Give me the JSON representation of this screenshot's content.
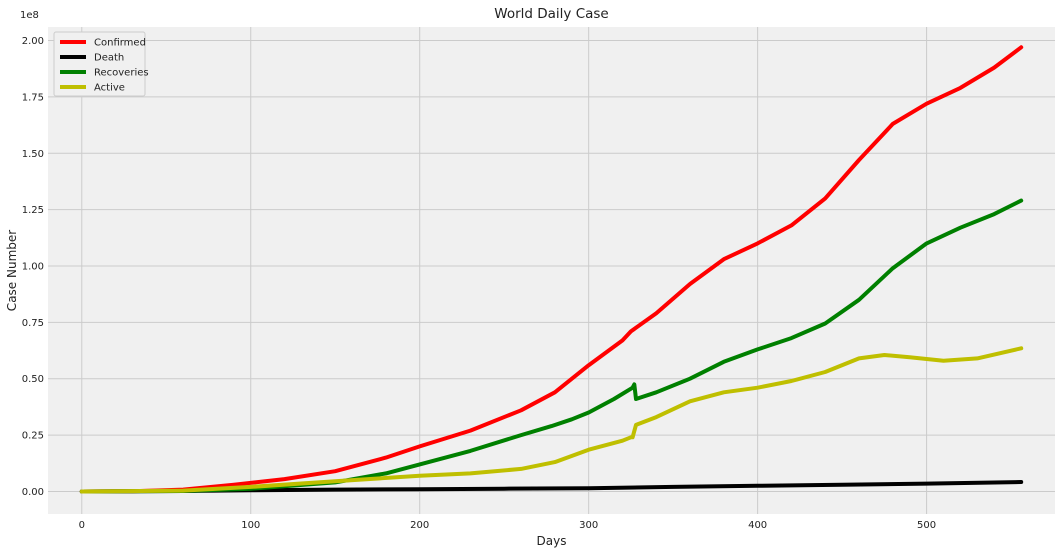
{
  "chart_data": {
    "type": "line",
    "title": "World Daily Case",
    "xlabel": "Days",
    "ylabel": "Case Number",
    "y_scale_label": "1e8",
    "xlim": [
      -20,
      576
    ],
    "ylim": [
      -0.1,
      2.06
    ],
    "x_ticks": [
      0,
      100,
      200,
      300,
      400,
      500
    ],
    "x_tick_labels": [
      "0",
      "100",
      "200",
      "300",
      "400",
      "500"
    ],
    "y_ticks": [
      0,
      0.25,
      0.5,
      0.75,
      1.0,
      1.25,
      1.5,
      1.75,
      2.0
    ],
    "y_tick_labels": [
      "0.00",
      "0.25",
      "0.50",
      "0.75",
      "1.00",
      "1.25",
      "1.50",
      "1.75",
      "2.00"
    ],
    "grid": true,
    "legend_position": "top-left",
    "series": [
      {
        "name": "Confirmed",
        "color": "#ff0000",
        "points": [
          [
            0,
            0
          ],
          [
            30,
            0.001
          ],
          [
            60,
            0.008
          ],
          [
            90,
            0.03
          ],
          [
            120,
            0.055
          ],
          [
            150,
            0.09
          ],
          [
            180,
            0.15
          ],
          [
            200,
            0.2
          ],
          [
            230,
            0.27
          ],
          [
            260,
            0.36
          ],
          [
            280,
            0.44
          ],
          [
            300,
            0.56
          ],
          [
            320,
            0.67
          ],
          [
            325,
            0.71
          ],
          [
            340,
            0.79
          ],
          [
            360,
            0.92
          ],
          [
            380,
            1.03
          ],
          [
            400,
            1.1
          ],
          [
            420,
            1.18
          ],
          [
            440,
            1.3
          ],
          [
            460,
            1.47
          ],
          [
            480,
            1.63
          ],
          [
            500,
            1.72
          ],
          [
            520,
            1.79
          ],
          [
            540,
            1.88
          ],
          [
            556,
            1.97
          ]
        ]
      },
      {
        "name": "Death",
        "color": "#000000",
        "points": [
          [
            0,
            0
          ],
          [
            60,
            0.002
          ],
          [
            100,
            0.005
          ],
          [
            150,
            0.008
          ],
          [
            200,
            0.01
          ],
          [
            250,
            0.012
          ],
          [
            300,
            0.014
          ],
          [
            350,
            0.02
          ],
          [
            400,
            0.025
          ],
          [
            450,
            0.03
          ],
          [
            500,
            0.035
          ],
          [
            556,
            0.042
          ]
        ]
      },
      {
        "name": "Recoveries",
        "color": "#008000",
        "points": [
          [
            0,
            0
          ],
          [
            60,
            0.002
          ],
          [
            100,
            0.012
          ],
          [
            150,
            0.04
          ],
          [
            180,
            0.08
          ],
          [
            200,
            0.12
          ],
          [
            230,
            0.18
          ],
          [
            260,
            0.25
          ],
          [
            278,
            0.29
          ],
          [
            290,
            0.32
          ],
          [
            300,
            0.35
          ],
          [
            315,
            0.41
          ],
          [
            326,
            0.46
          ],
          [
            327,
            0.475
          ],
          [
            328,
            0.41
          ],
          [
            340,
            0.44
          ],
          [
            360,
            0.5
          ],
          [
            380,
            0.575
          ],
          [
            400,
            0.63
          ],
          [
            420,
            0.68
          ],
          [
            440,
            0.745
          ],
          [
            460,
            0.85
          ],
          [
            480,
            0.99
          ],
          [
            500,
            1.1
          ],
          [
            520,
            1.17
          ],
          [
            540,
            1.23
          ],
          [
            556,
            1.29
          ]
        ]
      },
      {
        "name": "Active",
        "color": "#bfbf00",
        "points": [
          [
            0,
            0
          ],
          [
            60,
            0.004
          ],
          [
            100,
            0.02
          ],
          [
            150,
            0.045
          ],
          [
            200,
            0.07
          ],
          [
            230,
            0.08
          ],
          [
            260,
            0.1
          ],
          [
            280,
            0.13
          ],
          [
            300,
            0.185
          ],
          [
            320,
            0.225
          ],
          [
            325,
            0.24
          ],
          [
            326,
            0.24
          ],
          [
            328,
            0.295
          ],
          [
            340,
            0.33
          ],
          [
            360,
            0.4
          ],
          [
            380,
            0.44
          ],
          [
            400,
            0.46
          ],
          [
            420,
            0.49
          ],
          [
            440,
            0.53
          ],
          [
            460,
            0.59
          ],
          [
            475,
            0.605
          ],
          [
            490,
            0.595
          ],
          [
            510,
            0.58
          ],
          [
            530,
            0.59
          ],
          [
            556,
            0.635
          ]
        ]
      }
    ]
  }
}
